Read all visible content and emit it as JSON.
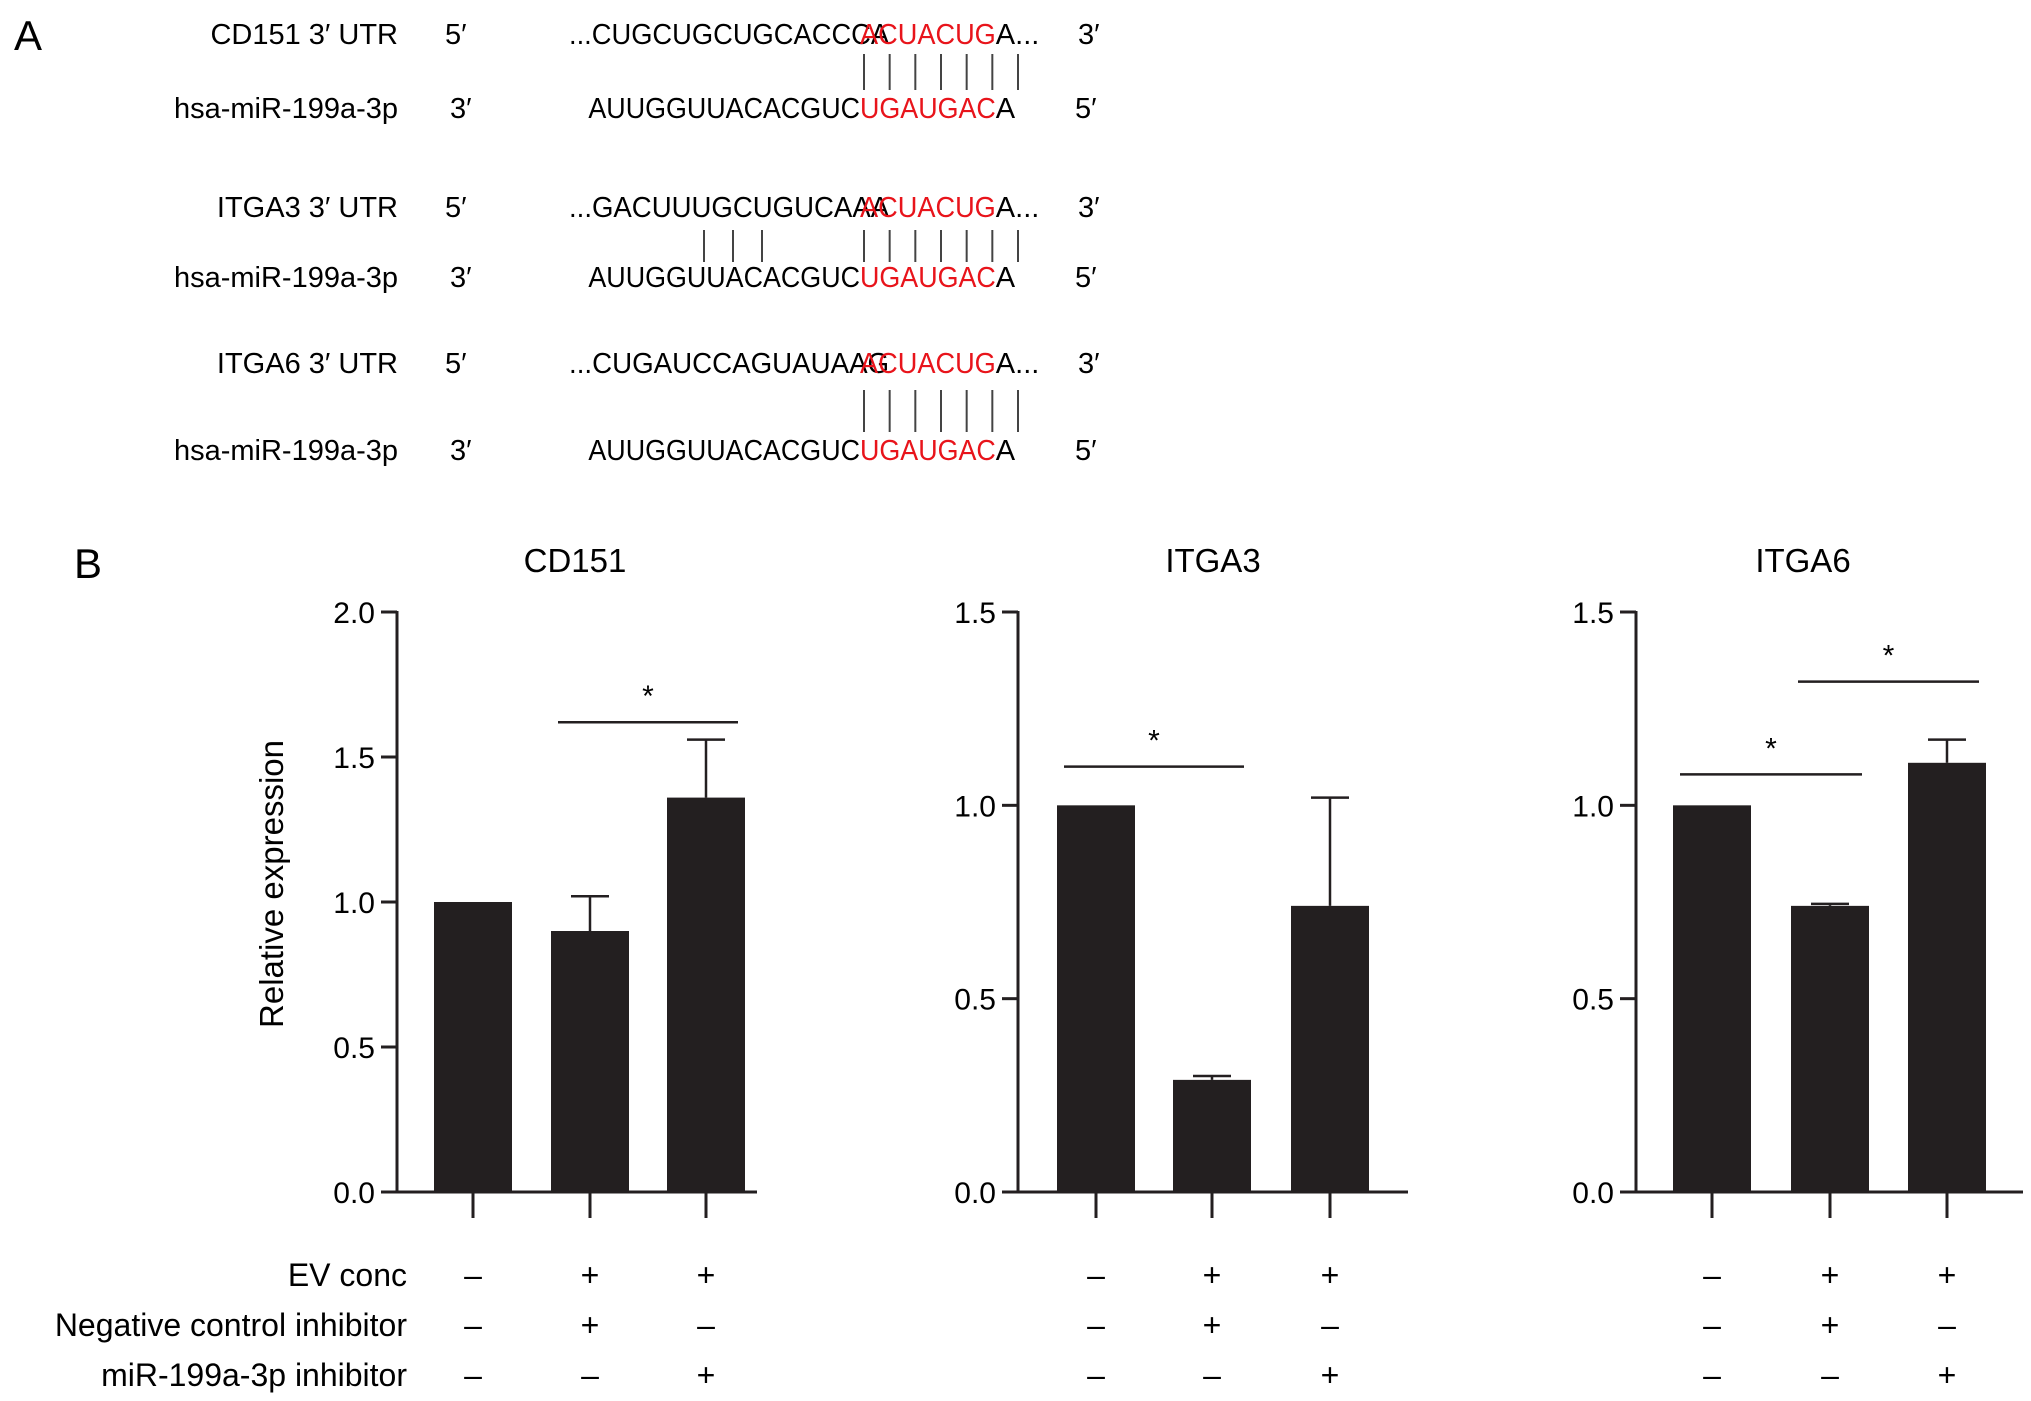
{
  "panel_a": {
    "label": "A",
    "groups": [
      {
        "target_name": "CD151 3′ UTR",
        "target_5": "5′",
        "target_pre": "...CUGCUGCUGCACCCA",
        "target_seed": "ACUACUG",
        "target_post": "A...",
        "target_3": "3′",
        "mirna_name": "hsa-miR-199a-3p",
        "mirna_3": "3′",
        "mirna_pre": "AUUGGUUACACGUC",
        "mirna_seed": "UGAUGAC",
        "mirna_post": "A",
        "mirna_5": "5′",
        "pair_bars": 7,
        "extra_bars": 0
      },
      {
        "target_name": "ITGA3 3′ UTR",
        "target_5": "5′",
        "target_pre": "...GACUUUGCUGUCAAA",
        "target_seed": "ACUACUG",
        "target_post": "A...",
        "target_3": "3′",
        "mirna_name": "hsa-miR-199a-3p",
        "mirna_3": "3′",
        "mirna_pre": "AUUGGUUACACGUC",
        "mirna_seed": "UGAUGAC",
        "mirna_post": "A",
        "mirna_5": "5′",
        "pair_bars": 7,
        "extra_bars": 3
      },
      {
        "target_name": "ITGA6 3′ UTR",
        "target_5": "5′",
        "target_pre": "...CUGAUCCAGUAUAAG",
        "target_seed": "ACUACUG",
        "target_post": "A...",
        "target_3": "3′",
        "mirna_name": "hsa-miR-199a-3p",
        "mirna_3": "3′",
        "mirna_pre": "AUUGGUUACACGUC",
        "mirna_seed": "UGAUGAC",
        "mirna_post": "A",
        "mirna_5": "5′",
        "pair_bars": 7,
        "extra_bars": 0
      }
    ],
    "seed_color": "#e8141b"
  },
  "panel_b": {
    "label": "B",
    "conditions": [
      {
        "label": "EV conc",
        "values": [
          "–",
          "+",
          "+"
        ]
      },
      {
        "label": "Negative control inhibitor",
        "values": [
          "–",
          "+",
          "–"
        ]
      },
      {
        "label": "miR-199a-3p inhibitor",
        "values": [
          "–",
          "–",
          "+"
        ]
      }
    ]
  },
  "chart_data": [
    {
      "type": "bar",
      "title": "CD151",
      "ylabel": "Relative expression",
      "ylim": [
        0,
        2.0
      ],
      "yticks": [
        "0.0",
        "0.5",
        "1.0",
        "1.5",
        "2.0"
      ],
      "yticks_values": [
        0,
        0.5,
        1.0,
        1.5,
        2.0
      ],
      "values": [
        1.0,
        0.9,
        1.36
      ],
      "errors": [
        0,
        0.12,
        0.2
      ],
      "significance": [
        {
          "from": 1,
          "to": 2,
          "level": 1.62,
          "label": "*"
        }
      ],
      "bar_color": "#231f20"
    },
    {
      "type": "bar",
      "title": "ITGA3",
      "ylabel": "",
      "ylim": [
        0,
        1.5
      ],
      "yticks": [
        "0.0",
        "0.5",
        "1.0",
        "1.5"
      ],
      "yticks_values": [
        0,
        0.5,
        1.0,
        1.5
      ],
      "values": [
        1.0,
        0.29,
        0.74
      ],
      "errors": [
        0,
        0.01,
        0.28
      ],
      "significance": [
        {
          "from": 0,
          "to": 1,
          "level": 1.1,
          "label": "*"
        }
      ],
      "bar_color": "#231f20"
    },
    {
      "type": "bar",
      "title": "ITGA6",
      "ylabel": "",
      "ylim": [
        0,
        1.5
      ],
      "yticks": [
        "0.0",
        "0.5",
        "1.0",
        "1.5"
      ],
      "yticks_values": [
        0,
        0.5,
        1.0,
        1.5
      ],
      "values": [
        1.0,
        0.74,
        1.11
      ],
      "errors": [
        0,
        0.005,
        0.06
      ],
      "significance": [
        {
          "from": 0,
          "to": 1,
          "level": 1.08,
          "label": "*"
        },
        {
          "from": 1,
          "to": 2,
          "level": 1.32,
          "label": "*"
        }
      ],
      "bar_color": "#231f20"
    }
  ]
}
